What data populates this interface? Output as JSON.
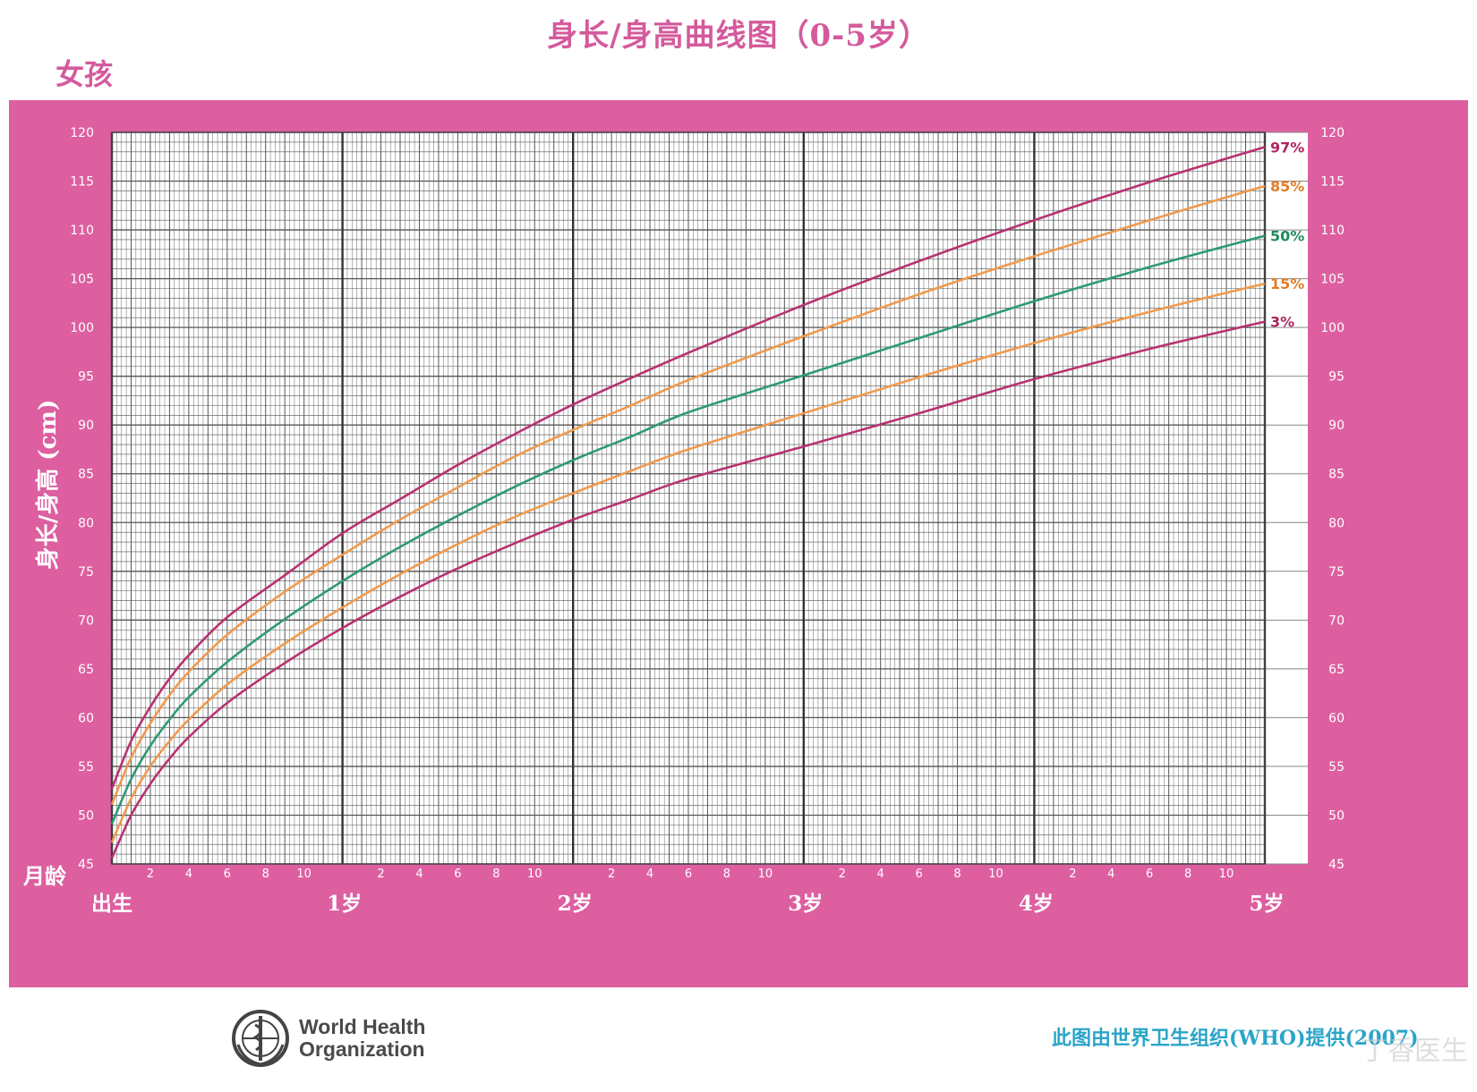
{
  "header": {
    "title": "身长/身高曲线图（0-5岁）",
    "subject": "女孩"
  },
  "footer": {
    "org_name_line1": "World Health",
    "org_name_line2": "Organization",
    "credit": "此图由世界卫生组织(WHO)提供(2007)",
    "watermark": "丁香医生"
  },
  "colors": {
    "frame": "#dd5fa0",
    "grid": "#555555",
    "p97": "#b83270",
    "p85": "#ef9a4e",
    "p50": "#2f9a73",
    "p15": "#ef9a4e",
    "p3": "#b83270"
  },
  "chart_data": {
    "type": "line",
    "title": "身长/身高曲线图（0-5岁）",
    "subtitle": "女孩",
    "ylabel": "身长/身高 (cm)",
    "xlabel": "月龄",
    "xlim": [
      0,
      60
    ],
    "ylim": [
      45,
      120
    ],
    "y_ticks": [
      45,
      50,
      55,
      60,
      65,
      70,
      75,
      80,
      85,
      90,
      95,
      100,
      105,
      110,
      115,
      120
    ],
    "x_month_ticks": [
      "2",
      "4",
      "6",
      "8",
      "10"
    ],
    "x_year_labels": [
      {
        "month": 0,
        "label": "出生"
      },
      {
        "month": 12,
        "label": "1岁"
      },
      {
        "month": 24,
        "label": "2岁"
      },
      {
        "month": 36,
        "label": "3岁"
      },
      {
        "month": 48,
        "label": "4岁"
      },
      {
        "month": 60,
        "label": "5岁"
      }
    ],
    "grid": true,
    "x": [
      0,
      1,
      2,
      3,
      4,
      6,
      9,
      12,
      15,
      18,
      21,
      24,
      27,
      30,
      36,
      42,
      48,
      54,
      60
    ],
    "series": [
      {
        "name": "97%",
        "values": [
          52.7,
          57.6,
          61.1,
          64.0,
          66.4,
          70.3,
          74.6,
          78.9,
          82.4,
          85.9,
          89.1,
          92.1,
          94.8,
          97.4,
          102.3,
          106.8,
          111.0,
          114.9,
          118.5
        ]
      },
      {
        "name": "85%",
        "values": [
          51.1,
          55.9,
          59.4,
          62.3,
          64.7,
          68.5,
          72.9,
          76.7,
          80.3,
          83.6,
          86.8,
          89.5,
          92.0,
          94.6,
          99.1,
          103.4,
          107.3,
          111.0,
          114.5
        ]
      },
      {
        "name": "50%",
        "values": [
          49.1,
          53.7,
          57.1,
          59.8,
          62.1,
          65.7,
          70.1,
          74.0,
          77.5,
          80.7,
          83.7,
          86.4,
          88.8,
          91.3,
          95.1,
          98.9,
          102.7,
          106.2,
          109.4
        ]
      },
      {
        "name": "15%",
        "values": [
          47.2,
          51.7,
          55.0,
          57.6,
          59.8,
          63.4,
          67.6,
          71.3,
          74.7,
          77.8,
          80.6,
          83.0,
          85.3,
          87.5,
          91.2,
          94.9,
          98.4,
          101.6,
          104.5
        ]
      },
      {
        "name": "3%",
        "values": [
          45.6,
          50.0,
          53.2,
          55.8,
          58.0,
          61.5,
          65.6,
          69.2,
          72.4,
          75.3,
          77.9,
          80.3,
          82.4,
          84.5,
          87.8,
          91.2,
          94.7,
          97.8,
          100.6
        ]
      }
    ]
  }
}
